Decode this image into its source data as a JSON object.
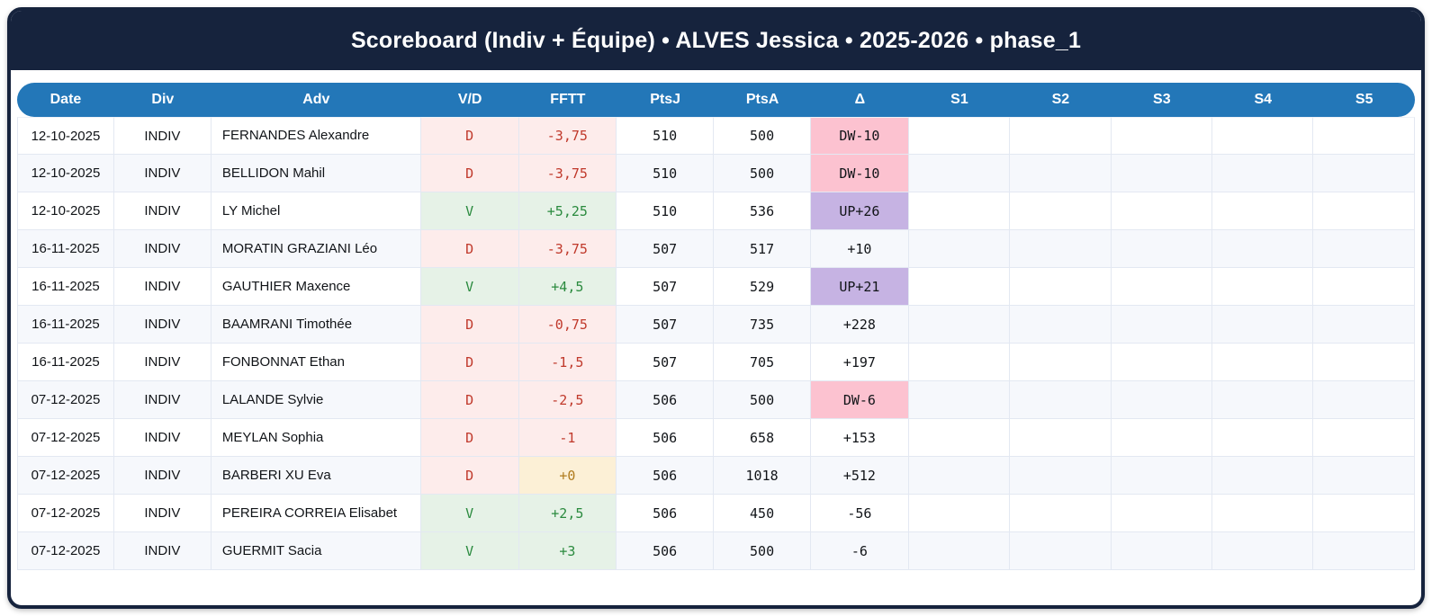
{
  "title": "Scoreboard (Indiv + Équipe) • ALVES Jessica • 2025-2026 • phase_1",
  "colors": {
    "navy": "#16233d",
    "header_blue": "#2377b8",
    "stripe_row": "#f6f8fc",
    "loss_bg": "#fdeceb",
    "loss_text": "#c0392b",
    "win_bg": "#e6f2e7",
    "win_text": "#2a8a3e",
    "zero_bg": "#fcf0d6",
    "zero_text": "#b07b1d",
    "delta_down_bg": "#fcc2d0",
    "delta_up_bg": "#c6b3e3"
  },
  "table": {
    "columns": [
      "Date",
      "Div",
      "Adv",
      "V/D",
      "FFTT",
      "PtsJ",
      "PtsA",
      "Δ",
      "S1",
      "S2",
      "S3",
      "S4",
      "S5"
    ],
    "rows": [
      {
        "date": "12-10-2025",
        "div": "INDIV",
        "adv": "FERNANDES Alexandre",
        "vd": "D",
        "result": "loss",
        "fftt": "-3,75",
        "fftt_style": "loss",
        "ptsj": "510",
        "ptsa": "500",
        "delta": "DW-10",
        "delta_style": "down",
        "s1": "",
        "s2": "",
        "s3": "",
        "s4": "",
        "s5": ""
      },
      {
        "date": "12-10-2025",
        "div": "INDIV",
        "adv": "BELLIDON Mahil",
        "vd": "D",
        "result": "loss",
        "fftt": "-3,75",
        "fftt_style": "loss",
        "ptsj": "510",
        "ptsa": "500",
        "delta": "DW-10",
        "delta_style": "down",
        "s1": "",
        "s2": "",
        "s3": "",
        "s4": "",
        "s5": ""
      },
      {
        "date": "12-10-2025",
        "div": "INDIV",
        "adv": "LY Michel",
        "vd": "V",
        "result": "win",
        "fftt": "+5,25",
        "fftt_style": "win",
        "ptsj": "510",
        "ptsa": "536",
        "delta": "UP+26",
        "delta_style": "up",
        "s1": "",
        "s2": "",
        "s3": "",
        "s4": "",
        "s5": ""
      },
      {
        "date": "16-11-2025",
        "div": "INDIV",
        "adv": "MORATIN GRAZIANI Léo",
        "vd": "D",
        "result": "loss",
        "fftt": "-3,75",
        "fftt_style": "loss",
        "ptsj": "507",
        "ptsa": "517",
        "delta": "+10",
        "delta_style": "plain",
        "s1": "",
        "s2": "",
        "s3": "",
        "s4": "",
        "s5": ""
      },
      {
        "date": "16-11-2025",
        "div": "INDIV",
        "adv": "GAUTHIER Maxence",
        "vd": "V",
        "result": "win",
        "fftt": "+4,5",
        "fftt_style": "win",
        "ptsj": "507",
        "ptsa": "529",
        "delta": "UP+21",
        "delta_style": "up",
        "s1": "",
        "s2": "",
        "s3": "",
        "s4": "",
        "s5": ""
      },
      {
        "date": "16-11-2025",
        "div": "INDIV",
        "adv": "BAAMRANI Timothée",
        "vd": "D",
        "result": "loss",
        "fftt": "-0,75",
        "fftt_style": "loss",
        "ptsj": "507",
        "ptsa": "735",
        "delta": "+228",
        "delta_style": "plain",
        "s1": "",
        "s2": "",
        "s3": "",
        "s4": "",
        "s5": ""
      },
      {
        "date": "16-11-2025",
        "div": "INDIV",
        "adv": "FONBONNAT Ethan",
        "vd": "D",
        "result": "loss",
        "fftt": "-1,5",
        "fftt_style": "loss",
        "ptsj": "507",
        "ptsa": "705",
        "delta": "+197",
        "delta_style": "plain",
        "s1": "",
        "s2": "",
        "s3": "",
        "s4": "",
        "s5": ""
      },
      {
        "date": "07-12-2025",
        "div": "INDIV",
        "adv": "LALANDE Sylvie",
        "vd": "D",
        "result": "loss",
        "fftt": "-2,5",
        "fftt_style": "loss",
        "ptsj": "506",
        "ptsa": "500",
        "delta": "DW-6",
        "delta_style": "down",
        "s1": "",
        "s2": "",
        "s3": "",
        "s4": "",
        "s5": ""
      },
      {
        "date": "07-12-2025",
        "div": "INDIV",
        "adv": "MEYLAN Sophia",
        "vd": "D",
        "result": "loss",
        "fftt": "-1",
        "fftt_style": "loss",
        "ptsj": "506",
        "ptsa": "658",
        "delta": "+153",
        "delta_style": "plain",
        "s1": "",
        "s2": "",
        "s3": "",
        "s4": "",
        "s5": ""
      },
      {
        "date": "07-12-2025",
        "div": "INDIV",
        "adv": "BARBERI XU Eva",
        "vd": "D",
        "result": "loss",
        "fftt": "+0",
        "fftt_style": "zero",
        "ptsj": "506",
        "ptsa": "1018",
        "delta": "+512",
        "delta_style": "plain",
        "s1": "",
        "s2": "",
        "s3": "",
        "s4": "",
        "s5": ""
      },
      {
        "date": "07-12-2025",
        "div": "INDIV",
        "adv": "PEREIRA CORREIA Elisabet",
        "vd": "V",
        "result": "win",
        "fftt": "+2,5",
        "fftt_style": "win",
        "ptsj": "506",
        "ptsa": "450",
        "delta": "-56",
        "delta_style": "plain",
        "s1": "",
        "s2": "",
        "s3": "",
        "s4": "",
        "s5": ""
      },
      {
        "date": "07-12-2025",
        "div": "INDIV",
        "adv": "GUERMIT Sacia",
        "vd": "V",
        "result": "win",
        "fftt": "+3",
        "fftt_style": "win",
        "ptsj": "506",
        "ptsa": "500",
        "delta": "-6",
        "delta_style": "plain",
        "s1": "",
        "s2": "",
        "s3": "",
        "s4": "",
        "s5": ""
      }
    ]
  }
}
